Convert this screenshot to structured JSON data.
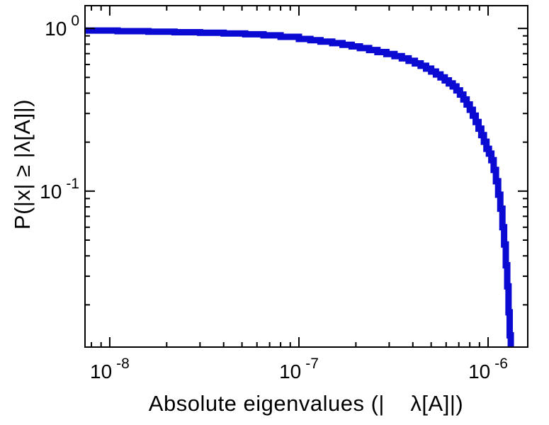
{
  "page": {
    "background_color": "#ffffff",
    "frame_color": "#000000",
    "text_color": "#000000"
  },
  "chart_data": {
    "type": "line",
    "subtype": "step-ccdf",
    "title": "",
    "xlabel": "Absolute eigenvalues (|    λ[A]|)",
    "ylabel": "P(|x| ≥ |λ[A]|)",
    "xscale": "log",
    "yscale": "log",
    "xlim": [
      7.4e-09,
      1.62e-06
    ],
    "ylim": [
      0.011,
      1.38
    ],
    "line_color": "#0a0ad2",
    "line_width": 9,
    "legend": null,
    "grid": false,
    "x_ticks": {
      "major": [
        {
          "value": 1e-08,
          "base": "10",
          "exp": "-8"
        },
        {
          "value": 1e-07,
          "base": "10",
          "exp": "-7"
        },
        {
          "value": 1e-06,
          "base": "10",
          "exp": "-6"
        }
      ],
      "minor": [
        8e-09,
        9e-09,
        2e-08,
        3e-08,
        4e-08,
        5e-08,
        6e-08,
        7e-08,
        8e-08,
        9e-08,
        2e-07,
        3e-07,
        4e-07,
        5e-07,
        6e-07,
        7e-07,
        8e-07,
        9e-07
      ]
    },
    "y_ticks": {
      "major": [
        {
          "value": 1.0,
          "base": "10",
          "exp": "0"
        },
        {
          "value": 0.1,
          "base": "10",
          "exp": "-1"
        }
      ],
      "minor": [
        0.9,
        0.8,
        0.7,
        0.6,
        0.5,
        0.4,
        0.3,
        0.2,
        0.09,
        0.08,
        0.07,
        0.06,
        0.05,
        0.04,
        0.03,
        0.02
      ]
    },
    "points": [
      [
        7.4e-09,
        0.97
      ],
      [
        1.1e-08,
        0.962
      ],
      [
        1.6e-08,
        0.955
      ],
      [
        2.2e-08,
        0.948
      ],
      [
        3e-08,
        0.94
      ],
      [
        4e-08,
        0.931
      ],
      [
        5.2e-08,
        0.921
      ],
      [
        6.5e-08,
        0.907
      ],
      [
        8e-08,
        0.888
      ],
      [
        1e-07,
        0.862
      ],
      [
        1.15e-07,
        0.846
      ],
      [
        1.3e-07,
        0.83
      ],
      [
        1.5e-07,
        0.812
      ],
      [
        1.7e-07,
        0.793
      ],
      [
        1.9e-07,
        0.775
      ],
      [
        2.1e-07,
        0.757
      ],
      [
        2.35e-07,
        0.737
      ],
      [
        2.6e-07,
        0.716
      ],
      [
        2.9e-07,
        0.696
      ],
      [
        3.2e-07,
        0.676
      ],
      [
        3.5e-07,
        0.655
      ],
      [
        3.8e-07,
        0.632
      ],
      [
        4.1e-07,
        0.61
      ],
      [
        4.4e-07,
        0.589
      ],
      [
        4.7e-07,
        0.566
      ],
      [
        5e-07,
        0.543
      ],
      [
        5.3e-07,
        0.521
      ],
      [
        5.6e-07,
        0.5
      ],
      [
        5.9e-07,
        0.479
      ],
      [
        6.2e-07,
        0.459
      ],
      [
        6.5e-07,
        0.44
      ],
      [
        6.8e-07,
        0.416
      ],
      [
        7.1e-07,
        0.392
      ],
      [
        7.4e-07,
        0.366
      ],
      [
        7.7e-07,
        0.341
      ],
      [
        8e-07,
        0.316
      ],
      [
        8.3e-07,
        0.291
      ],
      [
        8.6e-07,
        0.266
      ],
      [
        8.9e-07,
        0.242
      ],
      [
        9.2e-07,
        0.221
      ],
      [
        9.5e-07,
        0.201
      ],
      [
        9.8e-07,
        0.182
      ],
      [
        1.01e-06,
        0.17
      ],
      [
        1.04e-06,
        0.155
      ],
      [
        1.07e-06,
        0.135
      ],
      [
        1.1e-06,
        0.115
      ],
      [
        1.13e-06,
        0.095
      ],
      [
        1.16e-06,
        0.078
      ],
      [
        1.19e-06,
        0.06
      ],
      [
        1.215e-06,
        0.047
      ],
      [
        1.24e-06,
        0.035
      ],
      [
        1.262e-06,
        0.026
      ],
      [
        1.282e-06,
        0.018
      ],
      [
        1.3e-06,
        0.013
      ],
      [
        1.318e-06,
        0.0095
      ],
      [
        1.335e-06,
        0.007
      ]
    ]
  }
}
